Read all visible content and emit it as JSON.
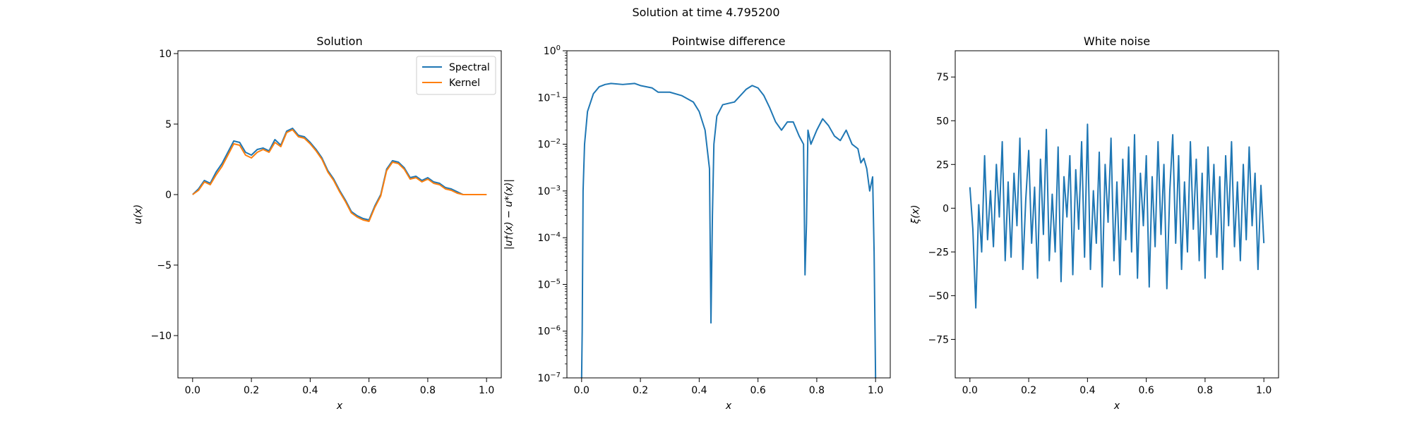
{
  "figure": {
    "suptitle": "Solution at time 4.795200"
  },
  "colors": {
    "spectral": "#1f77b4",
    "kernel": "#ff7f0e",
    "difference": "#1f77b4",
    "noise": "#1f77b4"
  },
  "chart_data": [
    {
      "type": "line",
      "title": "Solution",
      "xlabel": "x",
      "ylabel": "u(x)",
      "xlim": [
        -0.05,
        1.05
      ],
      "ylim": [
        -13.0,
        10.2
      ],
      "xticks": [
        0.0,
        0.2,
        0.4,
        0.6,
        0.8,
        1.0
      ],
      "xticklabels": [
        "0.0",
        "0.2",
        "0.4",
        "0.6",
        "0.8",
        "1.0"
      ],
      "yticks": [
        -10,
        -5,
        0,
        5,
        10
      ],
      "yticklabels": [
        "−10",
        "−5",
        "0",
        "5",
        "10"
      ],
      "legend": "top-right",
      "series": [
        {
          "name": "Spectral",
          "color": "#1f77b4",
          "x": [
            0.0,
            0.02,
            0.04,
            0.06,
            0.08,
            0.1,
            0.12,
            0.14,
            0.16,
            0.18,
            0.2,
            0.22,
            0.24,
            0.26,
            0.28,
            0.3,
            0.32,
            0.34,
            0.36,
            0.38,
            0.4,
            0.42,
            0.44,
            0.46,
            0.48,
            0.5,
            0.52,
            0.54,
            0.56,
            0.58,
            0.6,
            0.62,
            0.64,
            0.66,
            0.68,
            0.7,
            0.72,
            0.74,
            0.76,
            0.78,
            0.8,
            0.82,
            0.84,
            0.86,
            0.88,
            0.9,
            0.92,
            0.94,
            0.96,
            0.98,
            1.0
          ],
          "y": [
            0.0,
            0.4,
            1.0,
            0.8,
            1.6,
            2.2,
            3.0,
            3.8,
            3.7,
            3.0,
            2.8,
            3.2,
            3.3,
            3.1,
            3.9,
            3.5,
            4.5,
            4.7,
            4.2,
            4.1,
            3.7,
            3.2,
            2.6,
            1.7,
            1.1,
            0.3,
            -0.4,
            -1.2,
            -1.5,
            -1.7,
            -1.8,
            -0.8,
            0.0,
            1.8,
            2.4,
            2.3,
            1.9,
            1.2,
            1.3,
            1.0,
            1.2,
            0.9,
            0.8,
            0.5,
            0.4,
            0.2,
            0.0,
            0.0,
            0.0,
            0.0,
            0.0
          ]
        },
        {
          "name": "Kernel",
          "color": "#ff7f0e",
          "x": [
            0.0,
            0.02,
            0.04,
            0.06,
            0.08,
            0.1,
            0.12,
            0.14,
            0.16,
            0.18,
            0.2,
            0.22,
            0.24,
            0.26,
            0.28,
            0.3,
            0.32,
            0.34,
            0.36,
            0.38,
            0.4,
            0.42,
            0.44,
            0.46,
            0.48,
            0.5,
            0.52,
            0.54,
            0.56,
            0.58,
            0.6,
            0.62,
            0.64,
            0.66,
            0.68,
            0.7,
            0.72,
            0.74,
            0.76,
            0.78,
            0.8,
            0.82,
            0.84,
            0.86,
            0.88,
            0.9,
            0.92,
            0.94,
            0.96,
            0.98,
            1.0
          ],
          "y": [
            0.0,
            0.3,
            0.9,
            0.7,
            1.4,
            2.0,
            2.8,
            3.6,
            3.5,
            2.8,
            2.6,
            3.0,
            3.2,
            3.0,
            3.7,
            3.4,
            4.4,
            4.6,
            4.1,
            4.0,
            3.6,
            3.1,
            2.5,
            1.6,
            1.0,
            0.2,
            -0.5,
            -1.3,
            -1.6,
            -1.8,
            -1.9,
            -0.9,
            -0.1,
            1.7,
            2.3,
            2.2,
            1.8,
            1.1,
            1.2,
            0.9,
            1.1,
            0.8,
            0.7,
            0.4,
            0.3,
            0.1,
            0.0,
            0.0,
            0.0,
            0.0,
            0.0
          ]
        }
      ]
    },
    {
      "type": "line",
      "title": "Pointwise difference",
      "xlabel": "x",
      "ylabel": "|u†(x) − u*(x)|",
      "yscale": "log",
      "xlim": [
        -0.05,
        1.05
      ],
      "ylim": [
        1e-07,
        1.0
      ],
      "xticks": [
        0.0,
        0.2,
        0.4,
        0.6,
        0.8,
        1.0
      ],
      "xticklabels": [
        "0.0",
        "0.2",
        "0.4",
        "0.6",
        "0.8",
        "1.0"
      ],
      "yticks": [
        1e-07,
        1e-06,
        1e-05,
        0.0001,
        0.001,
        0.01,
        0.1,
        1
      ],
      "yticklabels": [
        {
          "base": "10",
          "exp": "−7"
        },
        {
          "base": "10",
          "exp": "−6"
        },
        {
          "base": "10",
          "exp": "−5"
        },
        {
          "base": "10",
          "exp": "−4"
        },
        {
          "base": "10",
          "exp": "−3"
        },
        {
          "base": "10",
          "exp": "−2"
        },
        {
          "base": "10",
          "exp": "−1"
        },
        {
          "base": "10",
          "exp": "0"
        }
      ],
      "series": [
        {
          "color": "#1f77b4",
          "x": [
            0.0,
            0.002,
            0.005,
            0.01,
            0.02,
            0.04,
            0.06,
            0.08,
            0.1,
            0.14,
            0.18,
            0.2,
            0.24,
            0.26,
            0.3,
            0.34,
            0.38,
            0.4,
            0.42,
            0.435,
            0.44,
            0.445,
            0.45,
            0.46,
            0.48,
            0.5,
            0.52,
            0.56,
            0.58,
            0.6,
            0.62,
            0.64,
            0.66,
            0.68,
            0.7,
            0.72,
            0.74,
            0.755,
            0.76,
            0.765,
            0.77,
            0.78,
            0.8,
            0.82,
            0.84,
            0.86,
            0.88,
            0.9,
            0.92,
            0.94,
            0.95,
            0.96,
            0.97,
            0.98,
            0.99,
            0.995,
            1.0
          ],
          "y": [
            1e-07,
            1e-06,
            0.001,
            0.01,
            0.05,
            0.12,
            0.17,
            0.19,
            0.2,
            0.19,
            0.2,
            0.18,
            0.16,
            0.13,
            0.13,
            0.11,
            0.08,
            0.05,
            0.02,
            0.003,
            1.5e-06,
            0.0003,
            0.01,
            0.04,
            0.07,
            0.075,
            0.08,
            0.15,
            0.18,
            0.16,
            0.11,
            0.06,
            0.03,
            0.02,
            0.03,
            0.03,
            0.015,
            0.01,
            1.6e-05,
            0.0002,
            0.02,
            0.01,
            0.02,
            0.035,
            0.025,
            0.015,
            0.012,
            0.02,
            0.01,
            0.008,
            0.004,
            0.005,
            0.003,
            0.001,
            0.002,
            5e-05,
            1e-07
          ]
        }
      ]
    },
    {
      "type": "line",
      "title": "White noise",
      "xlabel": "x",
      "ylabel": "ξ(x)",
      "xlim": [
        -0.05,
        1.05
      ],
      "ylim": [
        -97,
        90
      ],
      "xticks": [
        0.0,
        0.2,
        0.4,
        0.6,
        0.8,
        1.0
      ],
      "xticklabels": [
        "0.0",
        "0.2",
        "0.4",
        "0.6",
        "0.8",
        "1.0"
      ],
      "yticks": [
        -75,
        -50,
        -25,
        0,
        25,
        50,
        75
      ],
      "yticklabels": [
        "−75",
        "−50",
        "−25",
        "0",
        "25",
        "50",
        "75"
      ],
      "series": [
        {
          "color": "#1f77b4",
          "x": [
            0.0,
            0.01,
            0.02,
            0.03,
            0.04,
            0.05,
            0.06,
            0.07,
            0.08,
            0.09,
            0.1,
            0.11,
            0.12,
            0.13,
            0.14,
            0.15,
            0.16,
            0.17,
            0.18,
            0.19,
            0.2,
            0.21,
            0.22,
            0.23,
            0.24,
            0.25,
            0.26,
            0.27,
            0.28,
            0.29,
            0.3,
            0.31,
            0.32,
            0.33,
            0.34,
            0.35,
            0.36,
            0.37,
            0.38,
            0.39,
            0.4,
            0.41,
            0.42,
            0.43,
            0.44,
            0.45,
            0.46,
            0.47,
            0.48,
            0.49,
            0.5,
            0.51,
            0.52,
            0.53,
            0.54,
            0.55,
            0.56,
            0.57,
            0.58,
            0.59,
            0.6,
            0.61,
            0.62,
            0.63,
            0.64,
            0.65,
            0.66,
            0.67,
            0.68,
            0.69,
            0.7,
            0.71,
            0.72,
            0.73,
            0.74,
            0.75,
            0.76,
            0.77,
            0.78,
            0.79,
            0.8,
            0.81,
            0.82,
            0.83,
            0.84,
            0.85,
            0.86,
            0.87,
            0.88,
            0.89,
            0.9,
            0.91,
            0.92,
            0.93,
            0.94,
            0.95,
            0.96,
            0.97,
            0.98,
            0.99,
            1.0
          ],
          "y": [
            12,
            -12,
            -57,
            2,
            -25,
            30,
            -18,
            10,
            -22,
            25,
            -5,
            38,
            -30,
            15,
            -28,
            20,
            -10,
            40,
            -35,
            5,
            33,
            -20,
            12,
            -40,
            28,
            -15,
            45,
            -30,
            8,
            -25,
            35,
            -42,
            18,
            -5,
            30,
            -38,
            22,
            -12,
            38,
            -28,
            48,
            -35,
            10,
            -20,
            32,
            -45,
            25,
            -8,
            40,
            -30,
            15,
            -38,
            28,
            -18,
            35,
            -25,
            42,
            -40,
            20,
            -10,
            30,
            -45,
            18,
            -22,
            38,
            -15,
            25,
            -46,
            10,
            42,
            -20,
            30,
            -35,
            15,
            -25,
            38,
            -12,
            28,
            -30,
            20,
            -40,
            35,
            -15,
            25,
            -28,
            18,
            -35,
            30,
            -10,
            38,
            -22,
            15,
            -30,
            25,
            -18,
            35,
            -10,
            20,
            -35,
            13,
            -20
          ]
        }
      ]
    }
  ]
}
